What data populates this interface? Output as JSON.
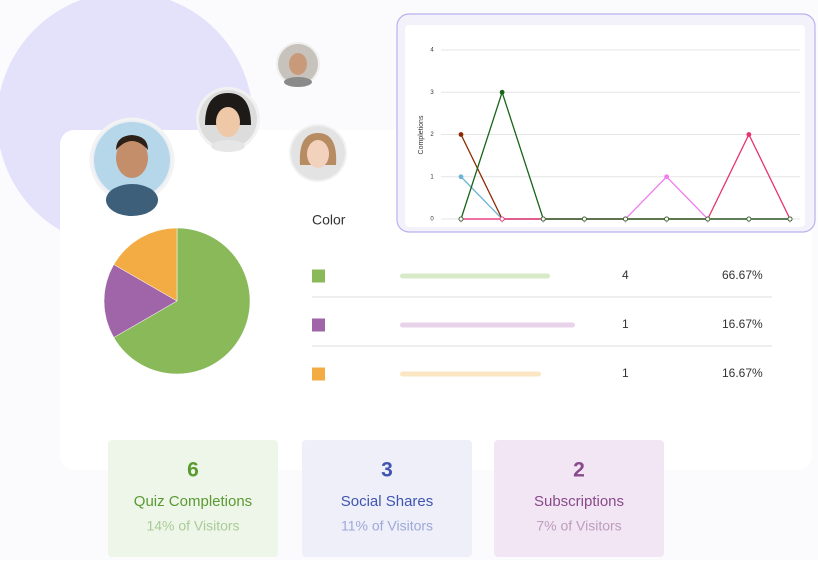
{
  "line_chart": {
    "type": "line",
    "y_label": "Completions",
    "categories": [
      null,
      null,
      null,
      null,
      null,
      null,
      null,
      null,
      null
    ],
    "ylim": [
      0,
      4
    ],
    "yticks": [
      0,
      1,
      2,
      3,
      4
    ],
    "grid": true,
    "series": [
      {
        "color": "#6bb5d6",
        "values": [
          1,
          0,
          0,
          0,
          0,
          0,
          0,
          0,
          0
        ]
      },
      {
        "color": "#8b2a00",
        "values": [
          2,
          0,
          0,
          0,
          0,
          0,
          0,
          0,
          0
        ]
      },
      {
        "color": "#f07cf0",
        "values": [
          0,
          0,
          0,
          0,
          0,
          1,
          0,
          0,
          0
        ]
      },
      {
        "color": "#e8336d",
        "values": [
          0,
          0,
          0,
          0,
          0,
          0,
          0,
          2,
          0
        ]
      },
      {
        "color": "#186418",
        "values": [
          0,
          3,
          0,
          0,
          0,
          0,
          0,
          0,
          0
        ]
      }
    ]
  },
  "poll": {
    "type": "pie",
    "header": "Color",
    "rows": [
      {
        "color": "#8ab95a",
        "bar_color": "#d9eac9",
        "count": 4,
        "percent": "66.67%"
      },
      {
        "color": "#a064a8",
        "bar_color": "#e8d3ea",
        "count": 1,
        "percent": "16.67%"
      },
      {
        "color": "#f3ac44",
        "bar_color": "#fbe6c4",
        "count": 1,
        "percent": "16.67%"
      }
    ]
  },
  "stats": [
    {
      "value": 6,
      "label": "Quiz Completions",
      "sub": "14% of Visitors"
    },
    {
      "value": 3,
      "label": "Social Shares",
      "sub": "11% of Visitors"
    },
    {
      "value": 2,
      "label": "Subscriptions",
      "sub": "7% of Visitors"
    }
  ]
}
